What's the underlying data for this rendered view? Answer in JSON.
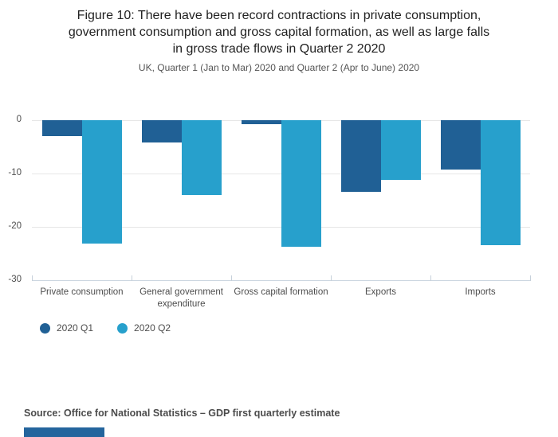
{
  "figure": {
    "title": "Figure 10: There have been record contractions in private consumption, government consumption and gross capital formation, as well as large falls in gross trade flows in Quarter 2 2020",
    "title_lines": [
      "Figure 10: There have been record contractions in private consumption,",
      "government consumption and gross capital formation, as well as large falls",
      "in gross trade flows in Quarter 2 2020"
    ],
    "subtitle": "UK, Quarter 1 (Jan to Mar) 2020 and Quarter 2 (Apr to June) 2020",
    "source": "Source: Office for National Statistics – GDP first quarterly estimate"
  },
  "chart_data": {
    "type": "bar",
    "categories": [
      "Private consumption",
      "General government expenditure",
      "Gross capital formation",
      "Exports",
      "Imports"
    ],
    "series": [
      {
        "name": "2020 Q1",
        "color": "#206095",
        "values": [
          -3.0,
          -4.2,
          -0.8,
          -13.5,
          -9.3
        ]
      },
      {
        "name": "2020 Q2",
        "color": "#27a0cc",
        "values": [
          -23.1,
          -14.0,
          -23.8,
          -11.2,
          -23.5
        ]
      }
    ],
    "yticks": [
      0,
      -10,
      -20,
      -30
    ],
    "ylim": [
      -30,
      0
    ],
    "xlabel": "",
    "ylabel": "",
    "grid": true,
    "legend_position": "bottom-left"
  },
  "colors": {
    "q1": "#206095",
    "q2": "#27a0cc",
    "gridline": "#e6e6e6",
    "axis": "#ccd6e0",
    "text": "#4d4d4d",
    "footer_bar": "#24659d"
  }
}
